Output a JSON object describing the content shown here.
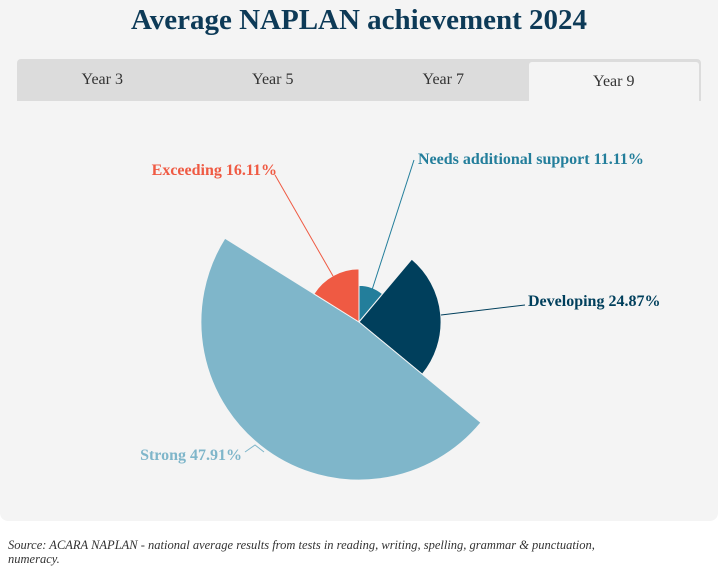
{
  "title": "Average NAPLAN achievement 2024",
  "tabs": [
    {
      "label": "Year 3",
      "active": false
    },
    {
      "label": "Year 5",
      "active": false
    },
    {
      "label": "Year 7",
      "active": false
    },
    {
      "label": "Year 9",
      "active": true
    }
  ],
  "chart_data": {
    "type": "pie",
    "variant": "variable-radius",
    "title": "Average NAPLAN achievement 2024",
    "slices": [
      {
        "name": "Needs additional support",
        "value": 11.11,
        "label": "Needs additional support 11.11%",
        "color": "#237e9b"
      },
      {
        "name": "Developing",
        "value": 24.87,
        "label": "Developing 24.87%",
        "color": "#003f5c"
      },
      {
        "name": "Strong",
        "value": 47.91,
        "label": "Strong 47.91%",
        "color": "#7fb6ca"
      },
      {
        "name": "Exceeding",
        "value": 16.11,
        "label": "Exceeding 16.11%",
        "color": "#ef5a43"
      }
    ]
  },
  "source": "Source: ACARA NAPLAN - national average results from tests in reading, writing, spelling, grammar & punctuation, numeracy."
}
